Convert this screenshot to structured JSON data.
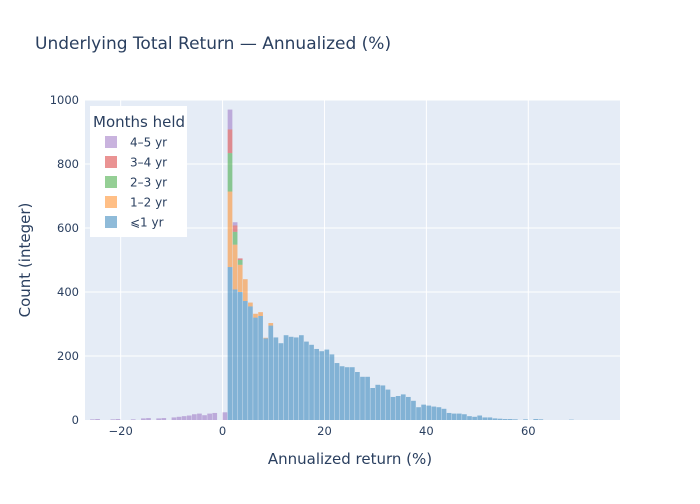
{
  "chart_data": {
    "type": "bar",
    "title": "Underlying Total Return — Annualized (%)",
    "xlabel": "Annualized return (%)",
    "ylabel": "Count (integer)",
    "xlim": [
      -27,
      78
    ],
    "ylim": [
      0,
      1000
    ],
    "bin_width": 1,
    "xticks": [
      -20,
      0,
      20,
      40,
      60
    ],
    "yticks": [
      0,
      200,
      400,
      600,
      800,
      1000
    ],
    "grid": true,
    "barmode": "stack",
    "legend": {
      "title": "Months held",
      "position": "top-left"
    },
    "x": [
      -27,
      -26,
      -25,
      -24,
      -23,
      -22,
      -21,
      -20,
      -19,
      -18,
      -17,
      -16,
      -15,
      -14,
      -13,
      -12,
      -11,
      -10,
      -9,
      -8,
      -7,
      -6,
      -5,
      -4,
      -3,
      -2,
      -1,
      0,
      1,
      2,
      3,
      4,
      5,
      6,
      7,
      8,
      9,
      10,
      11,
      12,
      13,
      14,
      15,
      16,
      17,
      18,
      19,
      20,
      21,
      22,
      23,
      24,
      25,
      26,
      27,
      28,
      29,
      30,
      31,
      32,
      33,
      34,
      35,
      36,
      37,
      38,
      39,
      40,
      41,
      42,
      43,
      44,
      45,
      46,
      47,
      48,
      49,
      50,
      51,
      52,
      53,
      54,
      55,
      56,
      57,
      58,
      59,
      60,
      61,
      62,
      63,
      64,
      65,
      66,
      67,
      68,
      69,
      70,
      71,
      72,
      73,
      74,
      75,
      76,
      77
    ],
    "series": [
      {
        "name": "⩽1 yr",
        "color": "#1f77b4",
        "values": [
          0,
          0,
          0,
          0,
          0,
          0,
          0,
          0,
          0,
          0,
          0,
          0,
          0,
          0,
          0,
          0,
          0,
          0,
          0,
          0,
          0,
          0,
          0,
          0,
          0,
          0,
          0,
          0,
          478,
          408,
          400,
          372,
          355,
          320,
          325,
          255,
          295,
          258,
          240,
          265,
          260,
          258,
          265,
          245,
          235,
          222,
          215,
          220,
          205,
          178,
          168,
          165,
          165,
          150,
          135,
          135,
          100,
          110,
          108,
          95,
          72,
          75,
          80,
          72,
          60,
          40,
          48,
          45,
          42,
          40,
          35,
          22,
          20,
          20,
          18,
          12,
          10,
          14,
          8,
          8,
          5,
          4,
          3,
          3,
          2,
          0,
          2,
          0,
          3,
          2,
          0,
          0,
          0,
          0,
          0,
          1,
          0,
          0,
          0,
          0,
          0,
          0,
          0,
          0,
          0
        ]
      },
      {
        "name": "1–2 yr",
        "color": "#ff7f0e",
        "values": [
          0,
          0,
          0,
          0,
          0,
          0,
          0,
          0,
          0,
          0,
          0,
          0,
          0,
          0,
          0,
          0,
          0,
          0,
          0,
          0,
          0,
          0,
          0,
          0,
          0,
          0,
          0,
          0,
          236,
          140,
          85,
          68,
          12,
          12,
          12,
          2,
          8,
          0,
          0,
          0,
          0,
          0,
          0,
          0,
          0,
          0,
          0,
          0,
          0,
          0,
          0,
          0,
          0,
          0,
          0,
          0,
          0,
          0,
          0,
          0,
          0,
          0,
          0,
          0,
          0,
          0,
          0,
          0,
          0,
          0,
          0,
          0,
          0,
          0,
          0,
          0,
          0,
          0,
          0,
          0,
          0,
          0,
          0,
          0,
          0,
          0,
          0,
          0,
          0,
          0,
          0,
          0,
          0,
          0,
          0,
          0,
          0,
          0,
          0,
          0,
          0,
          0,
          0,
          0,
          0
        ]
      },
      {
        "name": "2–3 yr",
        "color": "#2ca02c",
        "values": [
          0,
          0,
          0,
          0,
          0,
          0,
          0,
          0,
          0,
          0,
          0,
          0,
          0,
          0,
          0,
          0,
          0,
          0,
          0,
          0,
          0,
          0,
          0,
          0,
          0,
          0,
          0,
          0,
          120,
          40,
          15,
          0,
          0,
          0,
          0,
          0,
          0,
          0,
          0,
          0,
          0,
          0,
          0,
          0,
          0,
          0,
          0,
          0,
          0,
          0,
          0,
          0,
          0,
          0,
          0,
          0,
          0,
          0,
          0,
          0,
          0,
          0,
          0,
          0,
          0,
          0,
          0,
          0,
          0,
          0,
          0,
          0,
          0,
          0,
          0,
          0,
          0,
          0,
          0,
          0,
          0,
          0,
          0,
          0,
          0,
          0,
          0,
          0,
          0,
          0,
          0,
          0,
          0,
          0,
          0,
          0,
          0,
          0,
          0,
          0,
          0,
          0,
          0,
          0,
          0
        ]
      },
      {
        "name": "3–4 yr",
        "color": "#d62728",
        "values": [
          0,
          0,
          0,
          0,
          0,
          0,
          0,
          0,
          0,
          0,
          0,
          0,
          0,
          0,
          0,
          0,
          0,
          0,
          0,
          0,
          0,
          0,
          0,
          0,
          0,
          0,
          0,
          0,
          74,
          20,
          5,
          0,
          0,
          0,
          0,
          0,
          0,
          0,
          0,
          0,
          0,
          0,
          0,
          0,
          0,
          0,
          0,
          0,
          0,
          0,
          0,
          0,
          0,
          0,
          0,
          0,
          0,
          0,
          0,
          0,
          0,
          0,
          0,
          0,
          0,
          0,
          0,
          0,
          0,
          0,
          0,
          0,
          0,
          0,
          0,
          0,
          0,
          0,
          0,
          0,
          0,
          0,
          0,
          0,
          0,
          0,
          0,
          0,
          0,
          0,
          0,
          0,
          0,
          0,
          0,
          0,
          0,
          0,
          0,
          0,
          0,
          0,
          0,
          0,
          0
        ]
      },
      {
        "name": "4–5 yr",
        "color": "#9467bd",
        "values": [
          0,
          2,
          3,
          0,
          0,
          2,
          3,
          0,
          0,
          2,
          0,
          5,
          6,
          0,
          5,
          6,
          0,
          8,
          10,
          12,
          14,
          18,
          20,
          15,
          20,
          22,
          0,
          24,
          62,
          10,
          0,
          0,
          0,
          0,
          0,
          0,
          0,
          0,
          0,
          0,
          0,
          0,
          0,
          0,
          0,
          0,
          0,
          0,
          0,
          0,
          0,
          0,
          0,
          0,
          0,
          0,
          0,
          0,
          0,
          0,
          0,
          0,
          0,
          0,
          0,
          0,
          0,
          0,
          0,
          0,
          0,
          0,
          0,
          0,
          0,
          0,
          0,
          0,
          0,
          0,
          0,
          0,
          0,
          0,
          0,
          0,
          0,
          0,
          0,
          0,
          0,
          0,
          0,
          0,
          0,
          0,
          0,
          0,
          0,
          0,
          0,
          0,
          0,
          0,
          0
        ]
      }
    ],
    "legend_order": [
      "4–5 yr",
      "3–4 yr",
      "2–3 yr",
      "1–2 yr",
      "⩽1 yr"
    ]
  }
}
